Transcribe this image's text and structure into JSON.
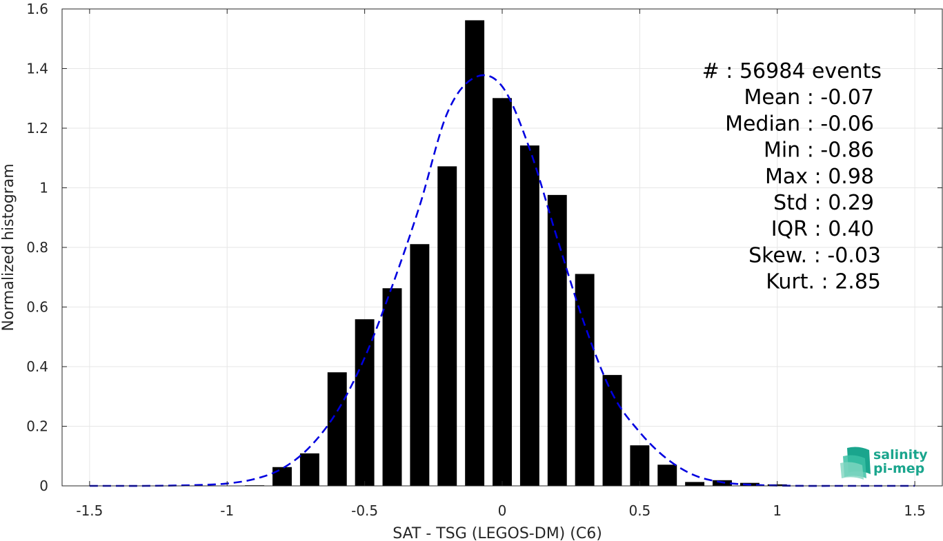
{
  "chart_data": {
    "type": "bar",
    "xlabel": "SAT - TSG (LEGOS-DM) (C6)",
    "ylabel": "Normalized histogram",
    "xlim": [
      -1.6,
      1.6
    ],
    "ylim": [
      0,
      1.6
    ],
    "xticks": [
      -1.5,
      -1,
      -0.5,
      0,
      0.5,
      1,
      1.5
    ],
    "xtick_labels": [
      "-1.5",
      "-1",
      "-0.5",
      "0",
      "0.5",
      "1",
      "1.5"
    ],
    "yticks": [
      0,
      0.2,
      0.4,
      0.6,
      0.8,
      1,
      1.2,
      1.4,
      1.6
    ],
    "ytick_labels": [
      "0",
      "0.2",
      "0.4",
      "0.6",
      "0.8",
      "1",
      "1.2",
      "1.4",
      "1.6"
    ],
    "grid": true,
    "bar_width": 0.07,
    "bar_color": "#000000",
    "bars": {
      "x": [
        -0.9,
        -0.8,
        -0.7,
        -0.6,
        -0.5,
        -0.4,
        -0.3,
        -0.2,
        -0.1,
        0.0,
        0.1,
        0.2,
        0.3,
        0.4,
        0.5,
        0.6,
        0.7,
        0.8,
        0.9,
        1.0
      ],
      "values": [
        0.002,
        0.063,
        0.109,
        0.381,
        0.559,
        0.663,
        0.811,
        1.072,
        1.562,
        1.301,
        1.142,
        0.976,
        0.711,
        0.372,
        0.136,
        0.071,
        0.013,
        0.019,
        0.01,
        0.005
      ]
    },
    "fit_curve": {
      "style": "dashed",
      "color": "#0000e0",
      "x": [
        -1.5,
        -1.4,
        -1.3,
        -1.2,
        -1.1,
        -1.0,
        -0.9,
        -0.8,
        -0.7,
        -0.6,
        -0.5,
        -0.4,
        -0.3,
        -0.2,
        -0.1,
        0.0,
        0.1,
        0.2,
        0.3,
        0.4,
        0.5,
        0.6,
        0.7,
        0.8,
        0.9,
        1.0,
        1.1,
        1.2,
        1.3,
        1.4,
        1.5
      ],
      "y": [
        0.0,
        0.0,
        0.0,
        0.001,
        0.003,
        0.008,
        0.023,
        0.058,
        0.13,
        0.25,
        0.43,
        0.67,
        0.94,
        1.25,
        1.37,
        1.34,
        1.13,
        0.83,
        0.54,
        0.31,
        0.18,
        0.09,
        0.035,
        0.012,
        0.004,
        0.001,
        0.0,
        0.0,
        0.0,
        0.0,
        0.0
      ]
    },
    "annotations": [
      "#  : 56984 events",
      "Mean : -0.07",
      "Median : -0.06",
      "Min : -0.86",
      "Max : 0.98",
      "Std : 0.29",
      "IQR : 0.40",
      "Skew. : -0.03",
      "Kurt. : 2.85"
    ]
  },
  "logo": {
    "line1": "salinity",
    "line2": "pi-mep",
    "color": "#1aa58d"
  }
}
